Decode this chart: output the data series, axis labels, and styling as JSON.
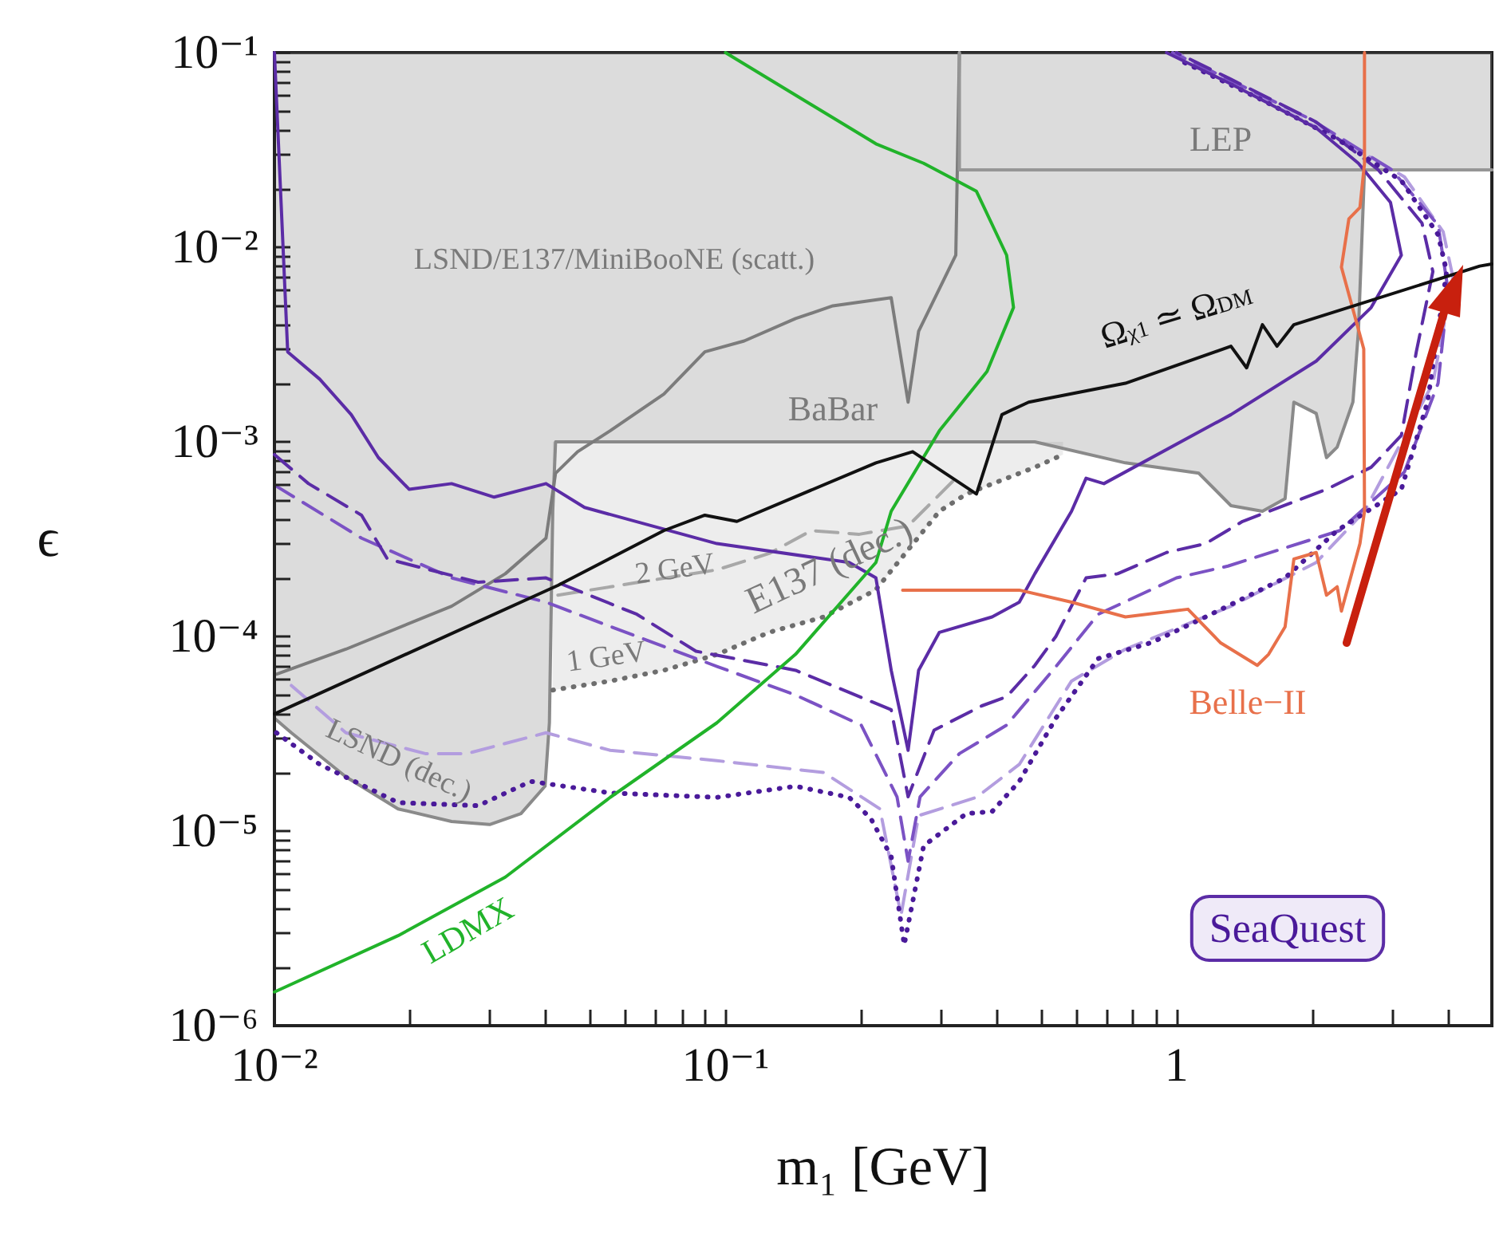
{
  "chart_data": {
    "type": "line",
    "xlabel": "m₁ [GeV]",
    "ylabel": "ϵ",
    "log": "xy",
    "marker": "none",
    "xlim": [
      0.01,
      5
    ],
    "ylim": [
      1e-06,
      0.1
    ],
    "xticks": [
      {
        "value": 0.01,
        "label": "10⁻²"
      },
      {
        "value": 0.02,
        "label": null
      },
      {
        "value": 0.03,
        "label": null
      },
      {
        "value": 0.04,
        "label": null
      },
      {
        "value": 0.05,
        "label": null
      },
      {
        "value": 0.06,
        "label": null
      },
      {
        "value": 0.07,
        "label": null
      },
      {
        "value": 0.08,
        "label": null
      },
      {
        "value": 0.09,
        "label": null
      },
      {
        "value": 0.1,
        "label": "10⁻¹"
      },
      {
        "value": 0.2,
        "label": null
      },
      {
        "value": 0.3,
        "label": null
      },
      {
        "value": 0.4,
        "label": null
      },
      {
        "value": 0.5,
        "label": null
      },
      {
        "value": 0.6,
        "label": null
      },
      {
        "value": 0.7,
        "label": null
      },
      {
        "value": 0.8,
        "label": null
      },
      {
        "value": 0.9,
        "label": null
      },
      1,
      {
        "value": 2,
        "label": null
      },
      {
        "value": 3,
        "label": null
      },
      {
        "value": 4,
        "label": null
      }
    ],
    "yticks": [
      {
        "value": 1e-06,
        "label": "10⁻⁶"
      },
      {
        "value": 2e-06,
        "label": null
      },
      {
        "value": 3e-06,
        "label": null
      },
      {
        "value": 4e-06,
        "label": null
      },
      {
        "value": 5e-06,
        "label": null
      },
      {
        "value": 6e-06,
        "label": null
      },
      {
        "value": 7e-06,
        "label": null
      },
      {
        "value": 8e-06,
        "label": null
      },
      {
        "value": 9e-06,
        "label": null
      },
      {
        "value": 1e-05,
        "label": "10⁻⁵"
      },
      {
        "value": 2e-05,
        "label": null
      },
      {
        "value": 3e-05,
        "label": null
      },
      {
        "value": 4e-05,
        "label": null
      },
      {
        "value": 5e-05,
        "label": null
      },
      {
        "value": 6e-05,
        "label": null
      },
      {
        "value": 7e-05,
        "label": null
      },
      {
        "value": 8e-05,
        "label": null
      },
      {
        "value": 9e-05,
        "label": null
      },
      {
        "value": 0.0001,
        "label": "10⁻⁴"
      },
      {
        "value": 0.0002,
        "label": null
      },
      {
        "value": 0.0003,
        "label": null
      },
      {
        "value": 0.0004,
        "label": null
      },
      {
        "value": 0.0005,
        "label": null
      },
      {
        "value": 0.0006,
        "label": null
      },
      {
        "value": 0.0007,
        "label": null
      },
      {
        "value": 0.0008,
        "label": null
      },
      {
        "value": 0.0009,
        "label": null
      },
      {
        "value": 0.001,
        "label": "10⁻³"
      },
      {
        "value": 0.002,
        "label": null
      },
      {
        "value": 0.003,
        "label": null
      },
      {
        "value": 0.004,
        "label": null
      },
      {
        "value": 0.005,
        "label": null
      },
      {
        "value": 0.006,
        "label": null
      },
      {
        "value": 0.007,
        "label": null
      },
      {
        "value": 0.008,
        "label": null
      },
      {
        "value": 0.009,
        "label": null
      },
      {
        "value": 0.01,
        "label": "10⁻²"
      },
      {
        "value": 0.02,
        "label": null
      },
      {
        "value": 0.03,
        "label": null
      },
      {
        "value": 0.04,
        "label": null
      },
      {
        "value": 0.05,
        "label": null
      },
      {
        "value": 0.06,
        "label": null
      },
      {
        "value": 0.07,
        "label": null
      },
      {
        "value": 0.08,
        "label": null
      },
      {
        "value": 0.09,
        "label": null
      },
      {
        "value": 0.1,
        "label": "10⁻¹"
      }
    ],
    "series": [
      {
        "type": "line",
        "color": "#8a8a8a",
        "line_style": "solid",
        "x": [
          0.01,
          0.0109,
          0.0144,
          0.0188,
          0.0247,
          0.03,
          0.0352,
          0.0398,
          0.0407,
          0.0414,
          0.042,
          0.485,
          0.77,
          1.12,
          1.32,
          1.55,
          1.74,
          1.82,
          2.04,
          2.15,
          2.27,
          2.46,
          2.53,
          2.61,
          5
        ],
        "values": [
          3.8e-05,
          3.2e-05,
          1.9e-05,
          1.3e-05,
          1.12e-05,
          1.08e-05,
          1.23e-05,
          1.7e-05,
          3.6e-05,
          0.00044,
          0.001,
          0.001,
          0.00078,
          0.00069,
          0.00047,
          0.00044,
          0.00051,
          0.0016,
          0.0014,
          0.00083,
          0.00094,
          0.0016,
          0.0037,
          0.025,
          0.025
        ],
        "lower": [
          3.8e-05,
          3.2e-05,
          1.9e-05,
          1.3e-05,
          1.12e-05,
          1.08e-05,
          1.23e-05,
          1.7e-05,
          3.6e-05,
          0.00044,
          0.001,
          0.001,
          0.00078,
          0.00069,
          0.00047,
          0.00044,
          0.00051,
          0.0016,
          0.0014,
          0.00083,
          0.00094,
          0.0016,
          0.0037,
          0.025,
          0.025
        ],
        "upper": [
          0.1,
          0.1,
          0.1,
          0.1,
          0.1,
          0.1,
          0.1,
          0.1,
          0.1,
          0.1,
          0.1,
          0.1,
          0.1,
          0.1,
          0.1,
          0.1,
          0.1,
          0.1,
          0.1,
          0.1,
          0.1,
          0.1,
          0.1,
          0.1,
          0.1
        ]
      },
      {
        "type": "line",
        "color": "#7c7c7c",
        "line_style": "solid",
        "x": [
          0.0101,
          0.0144,
          0.0247,
          0.0325,
          0.04,
          0.042,
          0.047,
          0.0555,
          0.073,
          0.09,
          0.11,
          0.143,
          0.173,
          0.233,
          0.254,
          0.268,
          0.324,
          0.33
        ],
        "values": [
          6.4e-05,
          8.6e-05,
          0.000143,
          0.00021,
          0.00032,
          0.00069,
          0.00089,
          0.00114,
          0.00176,
          0.0029,
          0.0033,
          0.0043,
          0.005,
          0.0055,
          0.0016,
          0.0037,
          0.0091,
          0.1
        ]
      },
      {
        "type": "line",
        "color": "#969696",
        "line_style": "solid",
        "x": [
          0.33,
          0.33,
          5
        ],
        "values": [
          0.1,
          0.025,
          0.025
        ]
      },
      {
        "type": "line",
        "color": "#6e6e6e",
        "line_style": "dotted",
        "x": [
          0.0414,
          0.0555,
          0.073,
          0.096,
          0.125,
          0.165,
          0.215,
          0.298,
          0.342,
          0.485,
          0.56
        ],
        "values": [
          5.3e-05,
          5.9e-05,
          6.7e-05,
          8.1e-05,
          0.000105,
          0.000126,
          0.000173,
          0.00044,
          0.00054,
          0.00074,
          0.00086
        ],
        "lower": [
          5.3e-05,
          5.9e-05,
          6.7e-05,
          8.1e-05,
          0.000105,
          0.000126,
          0.000173,
          0.00044,
          0.00054,
          0.00074,
          0.00086
        ],
        "upper": [
          0.001,
          0.001,
          0.001,
          0.001,
          0.001,
          0.001,
          0.001,
          0.001,
          0.001,
          0.001,
          0.001
        ]
      },
      {
        "type": "line",
        "color": "#a8a8a8",
        "line_style": "dashed",
        "x": [
          0.0425,
          0.0957,
          0.125,
          0.155,
          0.198,
          0.254,
          0.324
        ],
        "values": [
          0.000163,
          0.00022,
          0.000267,
          0.00035,
          0.000335,
          0.00037,
          0.00065
        ]
      },
      {
        "type": "line",
        "color": "#b39ddf",
        "line_style": "dashed",
        "x": [
          0.0109,
          0.0144,
          0.0216,
          0.0267,
          0.04,
          0.0555,
          0.0957,
          0.165,
          0.22,
          0.245,
          0.268,
          0.36,
          0.448,
          0.585,
          0.77,
          1.32,
          2.04,
          2.61,
          3.7,
          4.1,
          3.9,
          3.2,
          2.2,
          1.5,
          1.0
        ],
        "values": [
          5.6e-05,
          3.2e-05,
          2.5e-05,
          2.5e-05,
          3.2e-05,
          2.6e-05,
          2.3e-05,
          2e-05,
          1.3e-05,
          3.7e-06,
          1.2e-05,
          1.49e-05,
          2.2e-05,
          5.9e-05,
          8.6e-05,
          0.000143,
          0.00024,
          0.00044,
          0.002,
          0.007,
          0.012,
          0.023,
          0.038,
          0.06,
          0.1
        ]
      },
      {
        "type": "line",
        "color": "#7b52c4",
        "line_style": "dashed",
        "x": [
          0.01,
          0.0156,
          0.0247,
          0.04,
          0.0636,
          0.096,
          0.143,
          0.2,
          0.24,
          0.254,
          0.27,
          0.33,
          0.42,
          0.54,
          0.67,
          1.0,
          1.3,
          2.3,
          3.2,
          3.8,
          4.0,
          3.8,
          3.0,
          2.0,
          1.2,
          0.98
        ],
        "values": [
          0.0006,
          0.00032,
          0.0002,
          0.00015,
          0.0001,
          7e-05,
          5e-05,
          3.5e-05,
          1.5e-05,
          7e-06,
          1.5e-05,
          2.5e-05,
          3.5e-05,
          7e-05,
          0.00013,
          0.0002,
          0.00023,
          0.00035,
          0.0007,
          0.002,
          0.006,
          0.013,
          0.025,
          0.045,
          0.08,
          0.1
        ]
      },
      {
        "type": "line",
        "color": "#5b2ca6",
        "line_style": "dashed",
        "x": [
          0.01,
          0.0119,
          0.0156,
          0.0178,
          0.0283,
          0.04,
          0.0636,
          0.086,
          0.143,
          0.233,
          0.254,
          0.29,
          0.37,
          0.42,
          0.485,
          0.54,
          0.63,
          0.74,
          0.95,
          1.16,
          1.4,
          2.15,
          2.7,
          3.15,
          3.4,
          3.7,
          3.5,
          2.8,
          2.04,
          1.32,
          1.0
        ],
        "values": [
          0.00086,
          0.00061,
          0.00042,
          0.00025,
          0.00019,
          0.0002,
          0.00013,
          8.4e-05,
          6.7e-05,
          4.2e-05,
          1.5e-05,
          3.3e-05,
          4.4e-05,
          4.9e-05,
          7.1e-05,
          0.0001,
          0.0002,
          0.00021,
          0.00027,
          0.0003,
          0.00039,
          0.00057,
          0.00074,
          0.00108,
          0.0029,
          0.0075,
          0.0133,
          0.025,
          0.044,
          0.073,
          0.1
        ]
      },
      {
        "type": "line",
        "color": "#4a1a9a",
        "line_style": "dotted",
        "x": [
          0.0101,
          0.0126,
          0.0188,
          0.0283,
          0.037,
          0.0555,
          0.0957,
          0.143,
          0.188,
          0.21,
          0.233,
          0.249,
          0.275,
          0.342,
          0.39,
          0.448,
          0.54,
          0.67,
          0.88,
          1.16,
          1.74,
          2.27,
          3.15,
          3.6,
          3.97,
          3.8,
          3.15,
          2.27,
          1.55,
          1.0
        ],
        "values": [
          3.2e-05,
          2.2e-05,
          1.4e-05,
          1.35e-05,
          1.8e-05,
          1.57e-05,
          1.49e-05,
          1.7e-05,
          1.49e-05,
          1.16e-05,
          7.4e-06,
          2.6e-06,
          8.4e-06,
          1.23e-05,
          1.26e-05,
          1.8e-05,
          3.8e-05,
          7.7e-05,
          9.3e-05,
          0.000126,
          0.0002,
          0.00035,
          0.00057,
          0.0016,
          0.0075,
          0.0116,
          0.022,
          0.036,
          0.057,
          0.093
        ]
      },
      {
        "type": "line",
        "color": "#5b2ca6",
        "line_style": "solid",
        "x": [
          0.01,
          0.0107,
          0.0126,
          0.0148,
          0.017,
          0.0199,
          0.0247,
          0.0307,
          0.04,
          0.0487,
          0.0957,
          0.188,
          0.2155,
          0.233,
          0.254,
          0.268,
          0.298,
          0.39,
          0.448,
          0.485,
          0.585,
          0.63,
          0.69,
          1.32,
          2.04,
          2.7,
          3.15,
          2.98,
          2.53,
          2.04,
          1.32,
          0.95
        ],
        "values": [
          0.1,
          0.0029,
          0.0021,
          0.00138,
          0.00083,
          0.00057,
          0.00061,
          0.00052,
          0.00061,
          0.00046,
          0.0003,
          0.00024,
          0.0002,
          6.7e-05,
          2.6e-05,
          6.7e-05,
          0.000105,
          0.000126,
          0.00015,
          0.00021,
          0.00044,
          0.00065,
          0.00061,
          0.00138,
          0.0026,
          0.0049,
          0.0091,
          0.017,
          0.027,
          0.041,
          0.069,
          0.1
        ]
      },
      {
        "type": "line",
        "color": "#e8704a",
        "line_style": "solid",
        "x": [
          0.247,
          0.448,
          0.585,
          0.77,
          1.06,
          1.25,
          1.51,
          1.6,
          1.74,
          1.82,
          2.04,
          2.15,
          2.27,
          2.32,
          2.55,
          2.61,
          2.6,
          2.32,
          2.41,
          2.55,
          2.61,
          2.61
        ],
        "values": [
          0.000173,
          0.000173,
          0.00015,
          0.000126,
          0.000138,
          9.3e-05,
          7.1e-05,
          8.1e-05,
          0.000112,
          0.00025,
          0.00027,
          0.000163,
          0.00018,
          0.000135,
          0.0003,
          0.00044,
          0.003,
          0.0079,
          0.014,
          0.016,
          0.027,
          0.1
        ]
      },
      {
        "type": "line",
        "color": "#21b32a",
        "line_style": "solid",
        "x": [
          0.01,
          0.0188,
          0.0325,
          0.0555,
          0.0957,
          0.143,
          0.2155,
          0.233,
          0.298,
          0.38,
          0.435,
          0.42,
          0.36,
          0.275,
          0.2155,
          0.1
        ],
        "values": [
          1.49e-06,
          2.9e-06,
          5.8e-06,
          1.49e-05,
          3.6e-05,
          8.1e-05,
          0.00024,
          0.00044,
          0.00114,
          0.0023,
          0.0049,
          0.0091,
          0.0194,
          0.027,
          0.034,
          0.1
        ]
      },
      {
        "type": "line",
        "color": "#111111",
        "line_style": "solid",
        "x": [
          0.01,
          0.0425,
          0.073,
          0.09,
          0.106,
          0.2155,
          0.26,
          0.36,
          0.41,
          0.47,
          0.51,
          0.77,
          1.32,
          1.43,
          1.55,
          1.67,
          1.82,
          4.7,
          5
        ],
        "values": [
          4e-05,
          0.000183,
          0.00035,
          0.00042,
          0.00039,
          0.00078,
          0.00089,
          0.00054,
          0.00138,
          0.0016,
          0.00166,
          0.002,
          0.0031,
          0.0024,
          0.004,
          0.0031,
          0.004,
          0.008,
          0.0082
        ]
      }
    ],
    "annotations": [
      "LSND/E137/MiniBooNE (scatt.)",
      "BaBar",
      "LEP",
      "Ω$_{χ1}$ ≃ Ω$_{DM}$",
      "2 GeV",
      "1 GeV",
      "E137 (dec.)",
      "LSND (dec.)",
      "LDMX",
      "Belle−II",
      "SeaQuest"
    ]
  }
}
